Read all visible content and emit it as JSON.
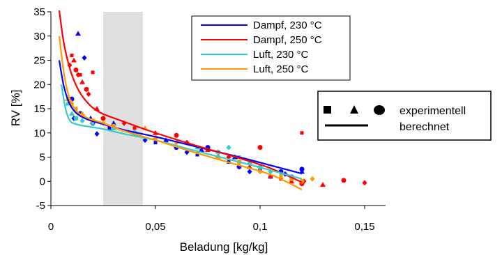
{
  "chart_data": {
    "type": "scatter",
    "xlabel": "Beladung [kg/kg]",
    "ylabel": "RV [%]",
    "xlim": [
      0,
      0.16
    ],
    "ylim": [
      -5,
      35
    ],
    "x_ticks": [
      0,
      0.05,
      0.1,
      0.15
    ],
    "x_tick_labels": [
      "0",
      "0,05",
      "0,1",
      "0,15"
    ],
    "y_ticks": [
      -5,
      0,
      5,
      10,
      15,
      20,
      25,
      30,
      35
    ],
    "y_tick_labels": [
      "-5",
      "0",
      "5",
      "10",
      "15",
      "20",
      "25",
      "30",
      "35"
    ],
    "shaded_region": {
      "x": [
        0.025,
        0.044
      ],
      "color": "#e0e0e0"
    },
    "grid": false,
    "legend": {
      "placement": "top-right",
      "entries": [
        {
          "label": "Dampf, 230 °C",
          "color": "#0000ff"
        },
        {
          "label": "Dampf, 250 °C",
          "color": "#ff0000"
        },
        {
          "label": "Luft, 230 °C",
          "color": "#33cccc"
        },
        {
          "label": "Luft, 250 °C",
          "color": "#ff9900"
        }
      ]
    },
    "marker_legend": {
      "placement": "right",
      "experimental_label": "experimentell",
      "calculated_label": "berechnet",
      "markers": [
        "square",
        "triangle",
        "circle"
      ]
    },
    "series": [
      {
        "name": "Dampf, 230 °C",
        "color": "#0000ff",
        "curve": [
          [
            0.004,
            25
          ],
          [
            0.006,
            20
          ],
          [
            0.008,
            17
          ],
          [
            0.01,
            15.2
          ],
          [
            0.013,
            13.8
          ],
          [
            0.018,
            12.7
          ],
          [
            0.025,
            11.8
          ],
          [
            0.035,
            10.6
          ],
          [
            0.05,
            9.2
          ],
          [
            0.07,
            7.1
          ],
          [
            0.09,
            5.0
          ],
          [
            0.105,
            3.3
          ],
          [
            0.12,
            1.6
          ]
        ],
        "points": [
          [
            0.01,
            17
          ],
          [
            0.011,
            13
          ],
          [
            0.012,
            15
          ],
          [
            0.013,
            30.5
          ],
          [
            0.014,
            14
          ],
          [
            0.016,
            25.5
          ],
          [
            0.017,
            19
          ],
          [
            0.019,
            13
          ],
          [
            0.02,
            12
          ],
          [
            0.022,
            9.8
          ],
          [
            0.028,
            11
          ],
          [
            0.03,
            12
          ],
          [
            0.04,
            10
          ],
          [
            0.045,
            8.5
          ],
          [
            0.05,
            8
          ],
          [
            0.055,
            8.5
          ],
          [
            0.06,
            7
          ],
          [
            0.065,
            6
          ],
          [
            0.07,
            5.5
          ],
          [
            0.072,
            6.5
          ],
          [
            0.075,
            7
          ],
          [
            0.08,
            5
          ],
          [
            0.085,
            4
          ],
          [
            0.088,
            5
          ],
          [
            0.09,
            3
          ],
          [
            0.095,
            2
          ],
          [
            0.1,
            2.5
          ],
          [
            0.105,
            1
          ],
          [
            0.11,
            2
          ],
          [
            0.112,
            1.5
          ],
          [
            0.115,
            1
          ],
          [
            0.12,
            2
          ],
          [
            0.12,
            2.5
          ]
        ]
      },
      {
        "name": "Dampf, 250 °C",
        "color": "#ff0000",
        "curve": [
          [
            0.004,
            35.5
          ],
          [
            0.006,
            29
          ],
          [
            0.008,
            25
          ],
          [
            0.01,
            22
          ],
          [
            0.013,
            19
          ],
          [
            0.016,
            17
          ],
          [
            0.02,
            15.2
          ],
          [
            0.025,
            13.9
          ],
          [
            0.035,
            12.3
          ],
          [
            0.05,
            10.0
          ],
          [
            0.07,
            7.3
          ],
          [
            0.09,
            4.8
          ],
          [
            0.105,
            2.7
          ],
          [
            0.12,
            -0.2
          ]
        ],
        "points": [
          [
            0.009,
            24
          ],
          [
            0.01,
            26
          ],
          [
            0.011,
            25
          ],
          [
            0.012,
            23
          ],
          [
            0.013,
            22
          ],
          [
            0.014,
            22
          ],
          [
            0.015,
            20.5
          ],
          [
            0.017,
            19
          ],
          [
            0.018,
            18
          ],
          [
            0.02,
            22.5
          ],
          [
            0.022,
            15
          ],
          [
            0.025,
            13
          ],
          [
            0.035,
            12
          ],
          [
            0.04,
            11
          ],
          [
            0.05,
            10
          ],
          [
            0.06,
            9.5
          ],
          [
            0.065,
            8
          ],
          [
            0.07,
            7
          ],
          [
            0.075,
            6.5
          ],
          [
            0.08,
            6
          ],
          [
            0.085,
            5
          ],
          [
            0.09,
            4
          ],
          [
            0.095,
            3
          ],
          [
            0.1,
            7
          ],
          [
            0.105,
            1
          ],
          [
            0.11,
            0.5
          ],
          [
            0.115,
            0
          ],
          [
            0.12,
            -0.5
          ],
          [
            0.121,
            0
          ],
          [
            0.12,
            10
          ],
          [
            0.13,
            -0.7
          ],
          [
            0.14,
            0.2
          ],
          [
            0.15,
            -0.3
          ]
        ]
      },
      {
        "name": "Luft, 230 °C",
        "color": "#33cccc",
        "curve": [
          [
            0.005,
            20
          ],
          [
            0.007,
            15
          ],
          [
            0.009,
            12.6
          ],
          [
            0.012,
            11.8
          ],
          [
            0.018,
            11.3
          ],
          [
            0.025,
            10.8
          ],
          [
            0.035,
            9.8
          ],
          [
            0.05,
            8.5
          ],
          [
            0.07,
            6.2
          ],
          [
            0.09,
            4.0
          ],
          [
            0.105,
            2.3
          ],
          [
            0.12,
            0.5
          ]
        ],
        "points": [
          [
            0.008,
            16
          ],
          [
            0.01,
            14
          ],
          [
            0.012,
            13
          ],
          [
            0.015,
            12.5
          ],
          [
            0.02,
            12
          ],
          [
            0.03,
            11
          ],
          [
            0.04,
            10
          ],
          [
            0.05,
            9
          ],
          [
            0.06,
            8
          ],
          [
            0.07,
            7
          ],
          [
            0.08,
            6
          ],
          [
            0.085,
            7
          ],
          [
            0.09,
            5
          ],
          [
            0.095,
            4
          ],
          [
            0.1,
            3
          ],
          [
            0.105,
            2
          ],
          [
            0.11,
            1.5
          ],
          [
            0.115,
            1
          ]
        ]
      },
      {
        "name": "Luft, 250 °C",
        "color": "#ff9900",
        "curve": [
          [
            0.004,
            30
          ],
          [
            0.006,
            23
          ],
          [
            0.008,
            18.5
          ],
          [
            0.01,
            16
          ],
          [
            0.013,
            14.2
          ],
          [
            0.018,
            13
          ],
          [
            0.025,
            12
          ],
          [
            0.035,
            10.4
          ],
          [
            0.05,
            8.5
          ],
          [
            0.07,
            5.8
          ],
          [
            0.09,
            3.3
          ],
          [
            0.105,
            1.4
          ],
          [
            0.12,
            -1.7
          ]
        ],
        "points": [
          [
            0.008,
            17
          ],
          [
            0.009,
            16.5
          ],
          [
            0.01,
            16
          ],
          [
            0.012,
            15
          ],
          [
            0.015,
            14
          ],
          [
            0.02,
            12.5
          ],
          [
            0.025,
            12
          ],
          [
            0.03,
            11.5
          ],
          [
            0.045,
            11
          ],
          [
            0.05,
            9
          ],
          [
            0.06,
            8
          ],
          [
            0.07,
            6
          ],
          [
            0.08,
            5
          ],
          [
            0.09,
            4
          ],
          [
            0.1,
            2
          ],
          [
            0.11,
            1
          ],
          [
            0.115,
            0.5
          ],
          [
            0.12,
            0
          ],
          [
            0.125,
            0.5
          ]
        ]
      }
    ]
  }
}
